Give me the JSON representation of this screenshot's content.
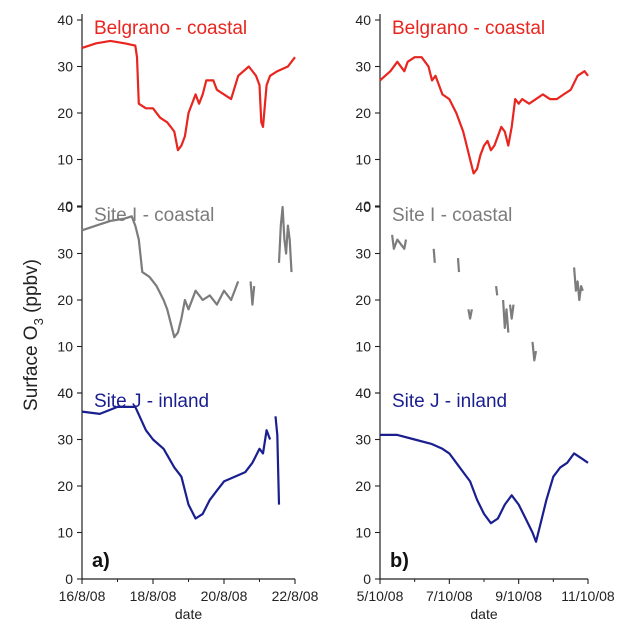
{
  "figure": {
    "ylabel": "Surface O",
    "ylabel_sub": "3",
    "ylabel_unit": " (ppbv)"
  },
  "chart_data": [
    {
      "type": "line",
      "panel_label": "a)",
      "xlabel": "date",
      "xtick_labels": [
        "16/8/08",
        "18/8/08",
        "20/8/08",
        "22/8/08"
      ],
      "x_unit": "day index since 16/8/08",
      "xlim": [
        0,
        6
      ],
      "ylim": [
        0,
        40
      ],
      "yticks": [
        0,
        10,
        20,
        30,
        40
      ],
      "subplots": [
        {
          "name": "Belgrano - coastal",
          "color": "#e8251f",
          "points": [
            [
              0,
              34
            ],
            [
              0.4,
              35
            ],
            [
              0.8,
              35.5
            ],
            [
              1.2,
              35
            ],
            [
              1.5,
              34.5
            ],
            [
              1.55,
              32
            ],
            [
              1.6,
              22
            ],
            [
              1.8,
              21
            ],
            [
              2.0,
              21
            ],
            [
              2.2,
              19
            ],
            [
              2.4,
              18
            ],
            [
              2.5,
              17
            ],
            [
              2.6,
              16
            ],
            [
              2.7,
              12
            ],
            [
              2.8,
              13
            ],
            [
              2.9,
              15
            ],
            [
              3.0,
              20
            ],
            [
              3.2,
              24
            ],
            [
              3.3,
              22
            ],
            [
              3.4,
              24
            ],
            [
              3.5,
              27
            ],
            [
              3.7,
              27
            ],
            [
              3.8,
              25
            ],
            [
              4.0,
              24
            ],
            [
              4.2,
              23
            ],
            [
              4.4,
              28
            ],
            [
              4.7,
              30
            ],
            [
              4.9,
              28
            ],
            [
              5.0,
              26
            ],
            [
              5.05,
              18
            ],
            [
              5.1,
              17
            ],
            [
              5.2,
              26
            ],
            [
              5.3,
              28
            ],
            [
              5.5,
              29
            ],
            [
              5.8,
              30
            ],
            [
              6.0,
              32
            ]
          ]
        },
        {
          "name": "Site I - coastal",
          "color": "#7c7c7c",
          "segments": [
            [
              [
                0,
                35
              ],
              [
                0.4,
                36
              ],
              [
                0.8,
                37
              ],
              [
                1.2,
                37.5
              ],
              [
                1.4,
                38
              ],
              [
                1.5,
                36
              ],
              [
                1.6,
                33
              ],
              [
                1.7,
                26
              ],
              [
                1.9,
                25
              ],
              [
                2.1,
                23
              ],
              [
                2.3,
                20
              ],
              [
                2.4,
                18
              ],
              [
                2.5,
                15
              ],
              [
                2.6,
                12
              ],
              [
                2.7,
                13
              ],
              [
                2.8,
                16
              ],
              [
                2.9,
                20
              ],
              [
                3.0,
                18
              ],
              [
                3.2,
                22
              ],
              [
                3.4,
                20
              ],
              [
                3.6,
                21
              ],
              [
                3.8,
                19
              ],
              [
                4.0,
                22
              ],
              [
                4.2,
                20
              ],
              [
                4.4,
                24
              ]
            ],
            [
              [
                4.75,
                24
              ],
              [
                4.8,
                19
              ],
              [
                4.85,
                23
              ]
            ],
            [
              [
                5.55,
                28
              ],
              [
                5.6,
                36
              ],
              [
                5.65,
                40
              ],
              [
                5.7,
                33
              ],
              [
                5.75,
                30
              ],
              [
                5.8,
                36
              ],
              [
                5.85,
                33
              ],
              [
                5.9,
                26
              ]
            ]
          ]
        },
        {
          "name": "Site J - inland",
          "color": "#1a1f8f",
          "segments": [
            [
              [
                0,
                36
              ],
              [
                0.5,
                35.5
              ],
              [
                1.0,
                37
              ],
              [
                1.5,
                37
              ],
              [
                1.8,
                32
              ],
              [
                2.0,
                30
              ],
              [
                2.3,
                28
              ],
              [
                2.6,
                24
              ],
              [
                2.8,
                22
              ],
              [
                3.0,
                16
              ],
              [
                3.2,
                13
              ],
              [
                3.4,
                14
              ],
              [
                3.6,
                17
              ],
              [
                3.8,
                19
              ],
              [
                4.0,
                21
              ],
              [
                4.3,
                22
              ],
              [
                4.6,
                23
              ],
              [
                4.8,
                25
              ],
              [
                5.0,
                28
              ],
              [
                5.1,
                27
              ],
              [
                5.2,
                32
              ],
              [
                5.3,
                30
              ]
            ],
            [
              [
                5.45,
                35
              ],
              [
                5.5,
                31
              ],
              [
                5.55,
                16
              ]
            ]
          ]
        }
      ]
    },
    {
      "type": "line",
      "panel_label": "b)",
      "xlabel": "date",
      "xtick_labels": [
        "5/10/08",
        "7/10/08",
        "9/10/08",
        "11/10/08"
      ],
      "x_unit": "day index since 5/10/08",
      "xlim": [
        0,
        6
      ],
      "ylim": [
        0,
        40
      ],
      "yticks": [
        0,
        10,
        20,
        30,
        40
      ],
      "subplots": [
        {
          "name": "Belgrano - coastal",
          "color": "#e8251f",
          "points": [
            [
              0,
              27
            ],
            [
              0.3,
              29
            ],
            [
              0.5,
              31
            ],
            [
              0.7,
              29
            ],
            [
              0.8,
              31
            ],
            [
              1.0,
              32
            ],
            [
              1.2,
              32
            ],
            [
              1.4,
              30
            ],
            [
              1.5,
              27
            ],
            [
              1.6,
              28
            ],
            [
              1.8,
              24
            ],
            [
              2.0,
              23
            ],
            [
              2.2,
              20
            ],
            [
              2.4,
              16
            ],
            [
              2.5,
              13
            ],
            [
              2.6,
              10
            ],
            [
              2.7,
              7
            ],
            [
              2.8,
              8
            ],
            [
              2.9,
              11
            ],
            [
              3.0,
              13
            ],
            [
              3.1,
              14
            ],
            [
              3.2,
              12
            ],
            [
              3.3,
              13
            ],
            [
              3.5,
              17
            ],
            [
              3.6,
              16
            ],
            [
              3.7,
              13
            ],
            [
              3.8,
              17
            ],
            [
              3.9,
              23
            ],
            [
              4.0,
              22
            ],
            [
              4.1,
              23
            ],
            [
              4.3,
              22
            ],
            [
              4.5,
              23
            ],
            [
              4.7,
              24
            ],
            [
              4.9,
              23
            ],
            [
              5.1,
              23
            ],
            [
              5.3,
              24
            ],
            [
              5.5,
              25
            ],
            [
              5.7,
              28
            ],
            [
              5.9,
              29
            ],
            [
              6.0,
              28
            ]
          ]
        },
        {
          "name": "Site I - coastal",
          "color": "#7c7c7c",
          "segments": [
            [
              [
                0.35,
                34
              ],
              [
                0.4,
                31
              ],
              [
                0.5,
                33
              ],
              [
                0.6,
                32
              ],
              [
                0.7,
                31
              ],
              [
                0.75,
                33
              ]
            ],
            [
              [
                1.55,
                31
              ],
              [
                1.58,
                28
              ]
            ],
            [
              [
                2.25,
                29
              ],
              [
                2.28,
                26
              ]
            ],
            [
              [
                2.55,
                18
              ],
              [
                2.6,
                16
              ],
              [
                2.65,
                18
              ]
            ],
            [
              [
                3.35,
                23
              ],
              [
                3.38,
                21
              ]
            ],
            [
              [
                3.55,
                20
              ],
              [
                3.6,
                14
              ],
              [
                3.65,
                18
              ],
              [
                3.7,
                13
              ]
            ],
            [
              [
                3.75,
                19
              ],
              [
                3.8,
                16
              ],
              [
                3.85,
                19
              ]
            ],
            [
              [
                4.4,
                11
              ],
              [
                4.45,
                7
              ],
              [
                4.5,
                9
              ]
            ],
            [
              [
                5.6,
                27
              ],
              [
                5.65,
                22
              ],
              [
                5.7,
                24
              ],
              [
                5.75,
                20
              ],
              [
                5.8,
                23
              ],
              [
                5.85,
                22
              ]
            ]
          ]
        },
        {
          "name": "Site J - inland",
          "color": "#1a1f8f",
          "points": [
            [
              0,
              31
            ],
            [
              0.5,
              31
            ],
            [
              1.0,
              30
            ],
            [
              1.5,
              29
            ],
            [
              1.8,
              28
            ],
            [
              2.0,
              27
            ],
            [
              2.2,
              25
            ],
            [
              2.4,
              23
            ],
            [
              2.6,
              21
            ],
            [
              2.8,
              17
            ],
            [
              3.0,
              14
            ],
            [
              3.2,
              12
            ],
            [
              3.4,
              13
            ],
            [
              3.6,
              16
            ],
            [
              3.8,
              18
            ],
            [
              4.0,
              16
            ],
            [
              4.2,
              13
            ],
            [
              4.4,
              10
            ],
            [
              4.5,
              8
            ],
            [
              4.6,
              11
            ],
            [
              4.8,
              17
            ],
            [
              5.0,
              22
            ],
            [
              5.2,
              24
            ],
            [
              5.4,
              25
            ],
            [
              5.6,
              27
            ],
            [
              5.8,
              26
            ],
            [
              6.0,
              25
            ]
          ]
        }
      ]
    }
  ]
}
